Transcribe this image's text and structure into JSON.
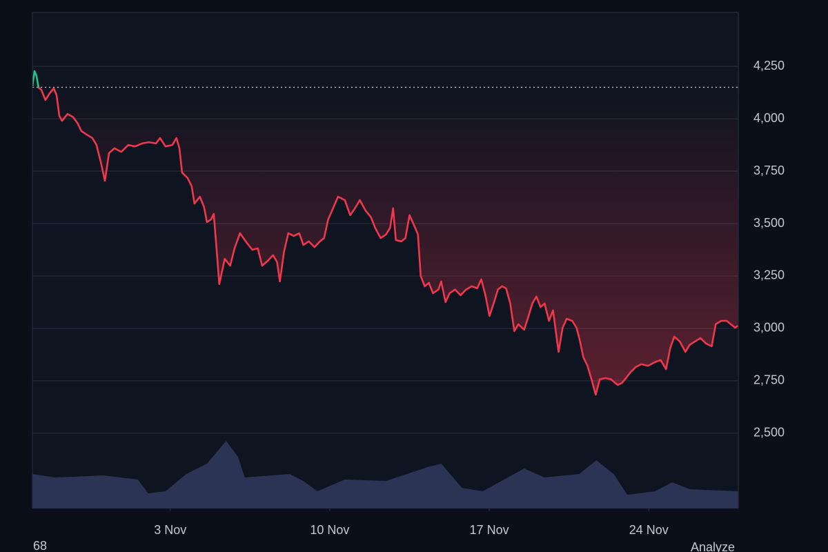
{
  "chart_data": {
    "type": "line",
    "x": [
      -3.05,
      -2.96,
      -2.87,
      -2.78,
      -2.66,
      -2.48,
      -2.29,
      -2.11,
      -1.99,
      -1.87,
      -1.75,
      -1.51,
      -1.26,
      -1.08,
      -0.9,
      -0.66,
      -0.42,
      -0.24,
      -0.05,
      0.13,
      0.31,
      0.55,
      0.85,
      1.16,
      1.46,
      1.76,
      2.06,
      2.37,
      2.55,
      2.79,
      3.09,
      3.27,
      3.4,
      3.52,
      3.76,
      3.94,
      4.06,
      4.3,
      4.48,
      4.61,
      4.79,
      4.91,
      5.03,
      5.15,
      5.39,
      5.63,
      5.82,
      6.06,
      6.36,
      6.6,
      6.84,
      7.03,
      7.27,
      7.51,
      7.69,
      7.81,
      7.99,
      8.18,
      8.42,
      8.66,
      8.84,
      9.08,
      9.33,
      9.57,
      9.75,
      9.93,
      10.17,
      10.36,
      10.66,
      10.9,
      11.14,
      11.32,
      11.57,
      11.81,
      11.99,
      12.23,
      12.47,
      12.65,
      12.78,
      12.9,
      13.14,
      13.32,
      13.5,
      13.68,
      13.87,
      13.99,
      14.17,
      14.35,
      14.53,
      14.77,
      14.89,
      15.08,
      15.26,
      15.5,
      15.74,
      15.98,
      16.23,
      16.47,
      16.65,
      16.83,
      17.01,
      17.19,
      17.38,
      17.56,
      17.74,
      17.92,
      18.1,
      18.28,
      18.53,
      18.71,
      18.89,
      19.07,
      19.25,
      19.43,
      19.62,
      19.8,
      19.92,
      20.04,
      20.22,
      20.4,
      20.64,
      20.83,
      20.95,
      21.13,
      21.31,
      21.49,
      21.67,
      21.85,
      22.1,
      22.34,
      22.64,
      22.82,
      23.0,
      23.19,
      23.43,
      23.67,
      23.97,
      24.27,
      24.52,
      24.76,
      24.94,
      25.12,
      25.36,
      25.61,
      25.79,
      26.03,
      26.27,
      26.51,
      26.76,
      26.94,
      27.18,
      27.42,
      27.6,
      27.79,
      27.91
    ],
    "series": [
      {
        "color": "#f0384c",
        "values": [
          4155,
          4227,
          4204,
          4148,
          4138,
          4089,
          4122,
          4145,
          4112,
          4013,
          3990,
          4023,
          4007,
          3980,
          3941,
          3924,
          3908,
          3875,
          3793,
          3704,
          3836,
          3859,
          3842,
          3875,
          3868,
          3882,
          3888,
          3882,
          3908,
          3868,
          3875,
          3908,
          3859,
          3743,
          3717,
          3678,
          3595,
          3628,
          3579,
          3507,
          3520,
          3546,
          3382,
          3211,
          3332,
          3299,
          3382,
          3454,
          3408,
          3375,
          3382,
          3299,
          3322,
          3349,
          3316,
          3224,
          3365,
          3454,
          3441,
          3454,
          3398,
          3415,
          3388,
          3415,
          3431,
          3520,
          3579,
          3628,
          3612,
          3540,
          3579,
          3612,
          3562,
          3530,
          3480,
          3431,
          3448,
          3480,
          3573,
          3421,
          3415,
          3431,
          3540,
          3497,
          3448,
          3250,
          3201,
          3217,
          3168,
          3185,
          3224,
          3125,
          3168,
          3185,
          3158,
          3185,
          3201,
          3191,
          3234,
          3158,
          3059,
          3119,
          3185,
          3201,
          3191,
          3119,
          2987,
          3020,
          2994,
          3053,
          3119,
          3152,
          3102,
          3119,
          3036,
          3086,
          2987,
          2888,
          3003,
          3046,
          3036,
          3003,
          2954,
          2862,
          2822,
          2757,
          2684,
          2757,
          2763,
          2757,
          2730,
          2740,
          2763,
          2790,
          2816,
          2829,
          2822,
          2839,
          2849,
          2806,
          2905,
          2961,
          2938,
          2888,
          2921,
          2938,
          2954,
          2928,
          2915,
          3020,
          3036,
          3036,
          3020,
          3003,
          3013
        ]
      }
    ],
    "up_color": "#22c58b",
    "reference_line": 4150,
    "xlim": [
      -3.05,
      27.93
    ],
    "xticks": [
      {
        "value": 3,
        "label": "3 Nov"
      },
      {
        "value": 10,
        "label": "10 Nov"
      },
      {
        "value": 17,
        "label": "17 Nov"
      },
      {
        "value": 24,
        "label": "24 Nov"
      }
    ],
    "ylim": [
      2141,
      4507
    ],
    "yticks": [
      {
        "value": 2500,
        "label": "2,500"
      },
      {
        "value": 2750,
        "label": "2,750"
      },
      {
        "value": 3000,
        "label": "3,000"
      },
      {
        "value": 3250,
        "label": "3,250"
      },
      {
        "value": 3500,
        "label": "3,500"
      },
      {
        "value": 3750,
        "label": "3,750"
      },
      {
        "value": 4000,
        "label": "4,000"
      },
      {
        "value": 4250,
        "label": "4,250"
      }
    ],
    "grid": true,
    "volume": {
      "color": "#2c3456",
      "x": [
        -3.05,
        -2.05,
        0.07,
        1.58,
        2.03,
        2.79,
        3.7,
        4.61,
        5.45,
        5.97,
        6.27,
        8.24,
        8.84,
        9.45,
        10.66,
        12.47,
        14.29,
        14.89,
        15.8,
        16.71,
        18.53,
        19.43,
        20.95,
        21.7,
        22.46,
        23.06,
        24.27,
        25.03,
        25.79,
        27.91
      ],
      "values": [
        50,
        45,
        48,
        42,
        22,
        25,
        50,
        65,
        98,
        75,
        45,
        50,
        40,
        25,
        42,
        40,
        60,
        65,
        30,
        25,
        58,
        45,
        50,
        70,
        50,
        20,
        25,
        38,
        28,
        25
      ],
      "vlim": [
        0,
        100
      ]
    },
    "footer_left": "68",
    "footer_right": "Analyze"
  }
}
